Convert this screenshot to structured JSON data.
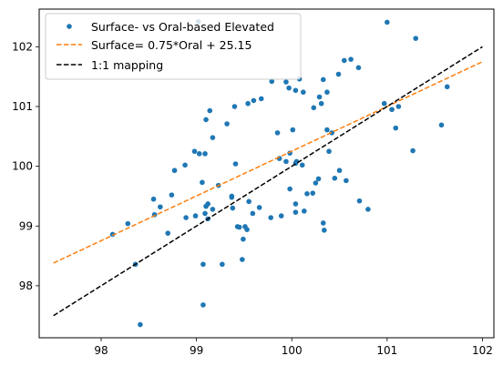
{
  "chart_data": {
    "type": "scatter",
    "xlim": [
      97.35,
      102.12
    ],
    "ylim": [
      97.13,
      102.63
    ],
    "xticks": [
      98,
      99,
      100,
      101,
      102
    ],
    "yticks": [
      98,
      99,
      100,
      101,
      102
    ],
    "grid": false,
    "legend_position": "top-left",
    "colors": {
      "scatter": "#1f77b4",
      "fit_line": "#ff7f0e",
      "identity_line": "#000000"
    },
    "series": [
      {
        "name": "Surface- vs Oral-based Elevated",
        "kind": "points",
        "x": [
          99.02,
          101.0,
          101.3,
          100.62,
          100.55,
          100.33,
          100.7,
          100.49,
          101.63,
          100.08,
          100.04,
          99.79,
          99.94,
          99.97,
          100.12,
          100.37,
          100.29,
          100.31,
          100.23,
          99.68,
          99.85,
          99.1,
          99.14,
          99.4,
          99.54,
          99.17,
          99.6,
          99.32,
          100.01,
          100.42,
          100.37,
          100.39,
          99.98,
          99.94,
          99.87,
          100.04,
          100.11,
          99.41,
          99.09,
          100.05,
          100.5,
          100.57,
          100.8,
          101.09,
          101.57,
          101.27,
          101.12,
          100.97,
          98.98,
          99.55,
          98.55,
          98.74,
          98.77,
          98.88,
          99.03,
          99.06,
          99.23,
          99.37,
          99.66,
          99.12,
          99.09,
          99.12,
          99.38,
          99.37,
          99.49,
          99.53,
          99.17,
          99.1,
          98.99,
          98.7,
          99.27,
          98.56,
          98.12,
          98.28,
          98.62,
          98.89,
          99.07,
          99.43,
          99.51,
          99.48,
          99.45,
          99.59,
          99.78,
          99.89,
          99.98,
          100.04,
          100.04,
          100.13,
          100.16,
          100.22,
          100.25,
          100.28,
          100.33,
          100.34,
          100.45,
          100.71,
          101.05,
          98.41,
          99.07,
          98.36
        ],
        "y": [
          102.42,
          102.41,
          102.14,
          101.79,
          101.77,
          101.45,
          101.65,
          101.54,
          101.33,
          101.46,
          101.27,
          101.42,
          101.41,
          101.31,
          101.24,
          101.24,
          101.16,
          101.05,
          100.98,
          101.13,
          100.56,
          100.78,
          100.93,
          101.0,
          101.05,
          100.48,
          101.1,
          100.71,
          100.61,
          100.56,
          100.61,
          100.25,
          100.22,
          100.08,
          100.13,
          100.05,
          100.02,
          100.04,
          100.21,
          100.08,
          99.93,
          99.76,
          99.28,
          100.64,
          100.69,
          100.26,
          101.0,
          101.05,
          100.25,
          99.41,
          99.45,
          99.52,
          99.93,
          100.02,
          100.21,
          99.73,
          99.68,
          99.48,
          99.31,
          99.37,
          99.21,
          99.12,
          99.3,
          99.5,
          98.78,
          98.94,
          99.28,
          99.33,
          99.17,
          98.88,
          98.36,
          99.19,
          98.86,
          99.04,
          99.32,
          99.14,
          98.36,
          98.99,
          98.99,
          98.44,
          98.98,
          99.21,
          99.14,
          99.17,
          99.62,
          99.37,
          99.23,
          99.25,
          99.54,
          99.55,
          99.72,
          99.79,
          99.05,
          98.93,
          99.8,
          99.42,
          100.95,
          97.35,
          97.68,
          98.36
        ]
      },
      {
        "name": "Surface= 0.75*Oral + 25.15",
        "kind": "dashed-line",
        "x": [
          97.5,
          102.0
        ],
        "y": [
          98.38,
          101.75
        ]
      },
      {
        "name": "1:1 mapping",
        "kind": "dashed-line",
        "x": [
          97.5,
          102.0
        ],
        "y": [
          97.5,
          102.0
        ]
      }
    ]
  }
}
